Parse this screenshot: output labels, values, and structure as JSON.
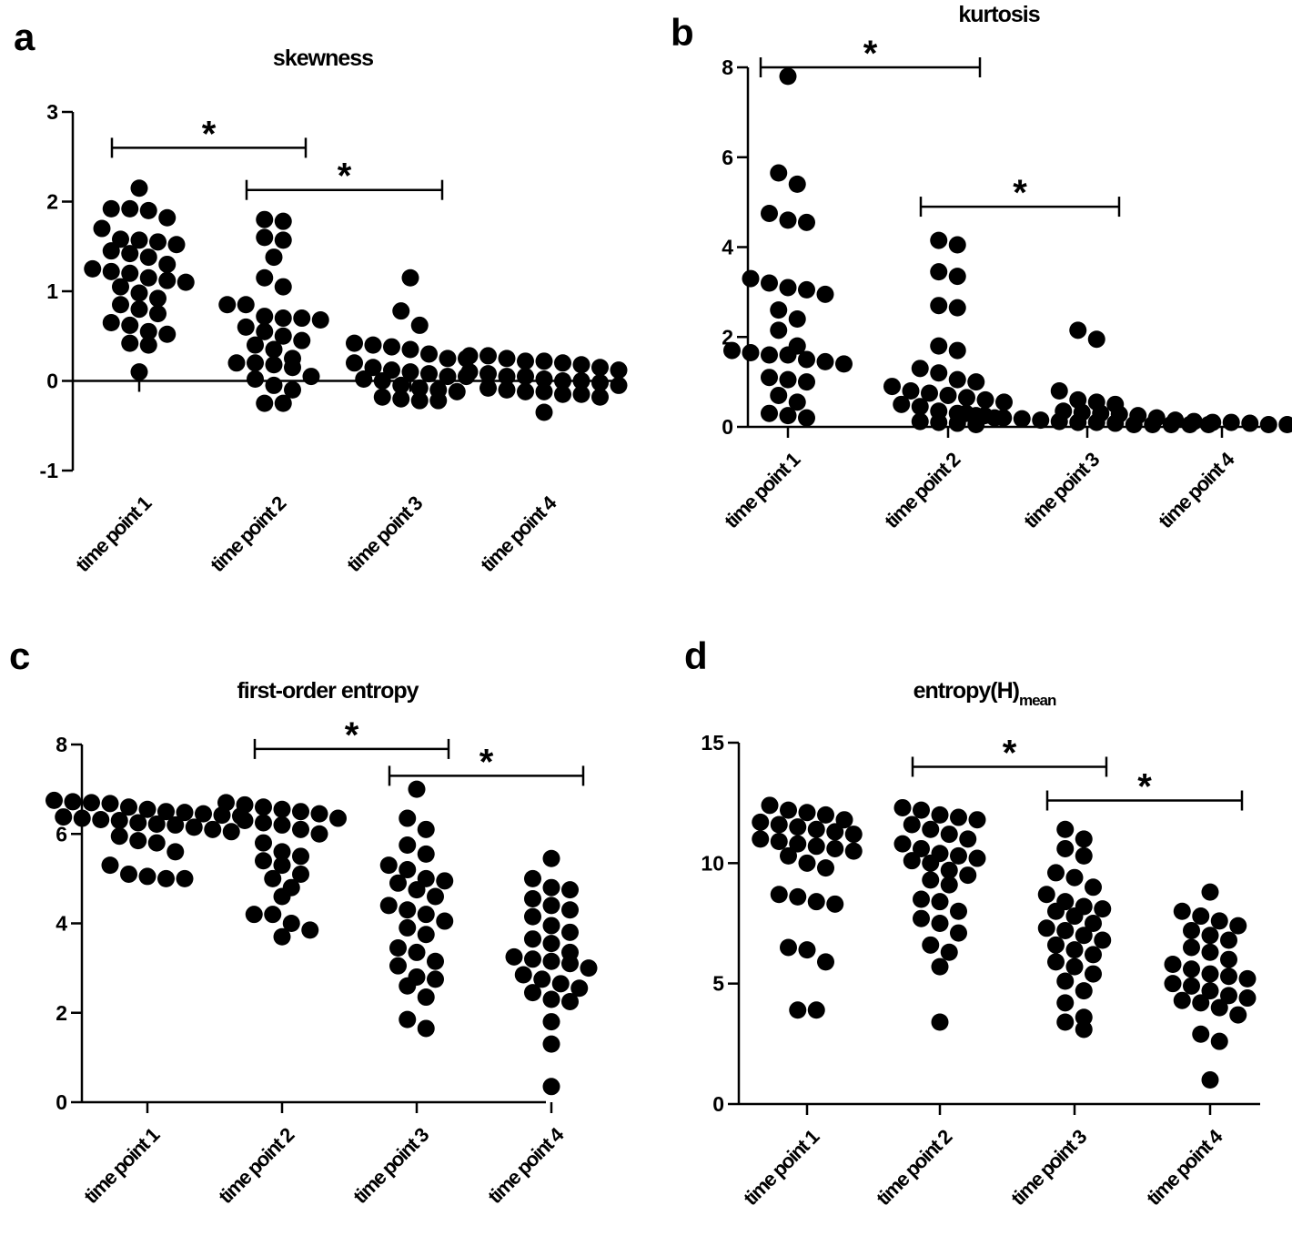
{
  "chart_data": [
    {
      "panel": "a",
      "type": "scatter",
      "title": "skewness",
      "title_sub": "",
      "categories": [
        "time point 1",
        "time point 2",
        "time point 3",
        "time point 4"
      ],
      "ylim": [
        -1,
        3
      ],
      "yticks": [
        -1,
        0,
        1,
        2,
        3
      ],
      "series": [
        {
          "name": "time point 1",
          "values": [
            2.15,
            1.92,
            1.92,
            1.9,
            1.82,
            1.7,
            1.58,
            1.57,
            1.55,
            1.52,
            1.45,
            1.42,
            1.38,
            1.3,
            1.25,
            1.22,
            1.2,
            1.15,
            1.12,
            1.1,
            1.05,
            0.98,
            0.92,
            0.85,
            0.8,
            0.75,
            0.65,
            0.62,
            0.55,
            0.52,
            0.42,
            0.4,
            0.1
          ]
        },
        {
          "name": "time point 2",
          "values": [
            1.8,
            1.78,
            1.6,
            1.57,
            1.38,
            1.15,
            1.05,
            0.85,
            0.85,
            0.72,
            0.7,
            0.7,
            0.68,
            0.6,
            0.55,
            0.5,
            0.45,
            0.4,
            0.35,
            0.25,
            0.2,
            0.2,
            0.18,
            0.15,
            0.05,
            0.02,
            -0.05,
            -0.1,
            -0.25,
            -0.25
          ]
        },
        {
          "name": "time point 3",
          "values": [
            1.15,
            0.78,
            0.62,
            0.42,
            0.4,
            0.38,
            0.35,
            0.3,
            0.25,
            0.25,
            0.2,
            0.15,
            0.12,
            0.1,
            0.08,
            0.05,
            0.05,
            0.02,
            0.0,
            -0.05,
            -0.08,
            -0.1,
            -0.12,
            -0.18,
            -0.2,
            -0.22,
            -0.22
          ]
        },
        {
          "name": "time point 4",
          "values": [
            0.28,
            0.28,
            0.25,
            0.22,
            0.22,
            0.2,
            0.18,
            0.15,
            0.12,
            0.1,
            0.08,
            0.05,
            0.05,
            0.02,
            0.0,
            0.0,
            -0.02,
            -0.05,
            -0.08,
            -0.1,
            -0.12,
            -0.12,
            -0.15,
            -0.15,
            -0.18,
            -0.35
          ]
        }
      ],
      "significance": [
        {
          "from": "time point 1",
          "to": "time point 2",
          "label": "*",
          "y": 2.6
        },
        {
          "from": "time point 2",
          "to": "time point 3",
          "label": "*",
          "y": 2.13
        }
      ]
    },
    {
      "panel": "b",
      "type": "scatter",
      "title": "kurtosis",
      "title_sub": "",
      "categories": [
        "time point 1",
        "time point 2",
        "time point 3",
        "time point 4"
      ],
      "ylim": [
        0,
        8
      ],
      "yticks": [
        0,
        2,
        4,
        6,
        8
      ],
      "series": [
        {
          "name": "time point 1",
          "values": [
            7.8,
            5.65,
            5.4,
            4.75,
            4.6,
            4.55,
            3.3,
            3.2,
            3.1,
            3.05,
            2.95,
            2.6,
            2.4,
            2.15,
            1.8,
            1.7,
            1.65,
            1.6,
            1.6,
            1.5,
            1.45,
            1.4,
            1.1,
            1.05,
            1.0,
            0.7,
            0.55,
            0.3,
            0.25,
            0.2
          ]
        },
        {
          "name": "time point 2",
          "values": [
            4.15,
            4.05,
            3.45,
            3.35,
            2.7,
            2.65,
            1.8,
            1.7,
            1.3,
            1.2,
            1.05,
            1.0,
            0.9,
            0.8,
            0.75,
            0.7,
            0.65,
            0.6,
            0.55,
            0.5,
            0.45,
            0.35,
            0.3,
            0.25,
            0.2,
            0.12,
            0.1,
            0.08,
            0.05
          ]
        },
        {
          "name": "time point 3",
          "values": [
            2.15,
            1.95,
            0.8,
            0.6,
            0.55,
            0.5,
            0.3,
            0.25,
            0.2,
            0.18,
            0.15,
            0.12,
            0.1,
            0.1,
            0.08,
            0.05,
            0.05,
            0.05,
            0.05,
            0.05
          ]
        },
        {
          "name": "time point 4",
          "values": [
            0.35,
            0.32,
            0.3,
            0.28,
            0.25,
            0.2,
            0.15,
            0.12,
            0.1,
            0.1,
            0.08,
            0.05,
            0.05,
            0.05,
            0.05,
            0.05,
            0.05,
            0.05
          ]
        }
      ],
      "significance": [
        {
          "from": "time point 1",
          "to": "time point 2",
          "label": "*",
          "y": 8.0
        },
        {
          "from": "time point 2",
          "to": "time point 3",
          "label": "*",
          "y": 4.9
        }
      ]
    },
    {
      "panel": "c",
      "type": "scatter",
      "title": "first-order entropy",
      "title_sub": "",
      "categories": [
        "time point 1",
        "time point 2",
        "time point 3",
        "time point 4"
      ],
      "ylim": [
        0,
        8
      ],
      "yticks": [
        0,
        2,
        4,
        6,
        8
      ],
      "series": [
        {
          "name": "time point 1",
          "values": [
            6.75,
            6.72,
            6.7,
            6.68,
            6.6,
            6.55,
            6.5,
            6.48,
            6.45,
            6.42,
            6.4,
            6.38,
            6.35,
            6.32,
            6.3,
            6.25,
            6.22,
            6.2,
            6.15,
            6.1,
            6.05,
            5.95,
            5.85,
            5.8,
            5.6,
            5.3,
            5.1,
            5.05,
            5.0,
            5.0
          ]
        },
        {
          "name": "time point 2",
          "values": [
            6.7,
            6.65,
            6.6,
            6.55,
            6.5,
            6.45,
            6.35,
            6.3,
            6.25,
            6.2,
            6.1,
            6.0,
            5.8,
            5.6,
            5.5,
            5.4,
            5.3,
            5.1,
            5.0,
            4.8,
            4.6,
            4.2,
            4.2,
            4.0,
            3.85,
            3.7
          ]
        },
        {
          "name": "time point 3",
          "values": [
            7.0,
            6.35,
            6.1,
            5.75,
            5.55,
            5.3,
            5.2,
            5.0,
            4.95,
            4.9,
            4.75,
            4.6,
            4.4,
            4.3,
            4.2,
            4.05,
            3.9,
            3.75,
            3.45,
            3.35,
            3.15,
            3.05,
            2.8,
            2.75,
            2.6,
            2.35,
            1.85,
            1.65
          ]
        },
        {
          "name": "time point 4",
          "values": [
            5.45,
            5.0,
            4.8,
            4.75,
            4.55,
            4.4,
            4.3,
            4.15,
            3.95,
            3.8,
            3.65,
            3.55,
            3.35,
            3.25,
            3.2,
            3.15,
            3.1,
            3.0,
            2.85,
            2.75,
            2.65,
            2.55,
            2.45,
            2.3,
            2.25,
            1.8,
            1.3,
            0.35
          ]
        }
      ],
      "significance": [
        {
          "from": "time point 2",
          "to": "time point 3",
          "label": "*",
          "y": 7.9
        },
        {
          "from": "time point 3",
          "to": "time point 4",
          "label": "*",
          "y": 7.3
        }
      ]
    },
    {
      "panel": "d",
      "type": "scatter",
      "title": "entropy(H)",
      "title_sub": "mean",
      "categories": [
        "time point 1",
        "time point 2",
        "time point 3",
        "time point 4"
      ],
      "ylim": [
        0,
        15
      ],
      "yticks": [
        0,
        5,
        10,
        15
      ],
      "series": [
        {
          "name": "time point 1",
          "values": [
            12.4,
            12.2,
            12.1,
            12.0,
            11.8,
            11.7,
            11.6,
            11.5,
            11.4,
            11.3,
            11.2,
            11.0,
            10.9,
            10.8,
            10.7,
            10.6,
            10.5,
            10.3,
            10.0,
            9.8,
            8.7,
            8.6,
            8.4,
            8.3,
            6.5,
            6.4,
            5.9,
            3.9,
            3.9
          ]
        },
        {
          "name": "time point 2",
          "values": [
            12.3,
            12.2,
            12.0,
            11.9,
            11.8,
            11.6,
            11.4,
            11.2,
            11.0,
            10.8,
            10.6,
            10.4,
            10.3,
            10.2,
            10.1,
            10.0,
            9.7,
            9.5,
            9.3,
            9.1,
            8.5,
            8.4,
            8.0,
            7.7,
            7.5,
            7.1,
            6.6,
            6.3,
            5.7,
            3.4
          ]
        },
        {
          "name": "time point 3",
          "values": [
            11.4,
            11.0,
            10.6,
            10.3,
            9.6,
            9.4,
            9.0,
            8.7,
            8.4,
            8.2,
            8.1,
            8.0,
            7.8,
            7.5,
            7.3,
            7.2,
            7.0,
            6.8,
            6.6,
            6.4,
            6.2,
            5.9,
            5.7,
            5.4,
            5.1,
            4.7,
            4.2,
            3.6,
            3.4,
            3.1
          ]
        },
        {
          "name": "time point 4",
          "values": [
            8.8,
            8.0,
            7.8,
            7.6,
            7.4,
            7.2,
            7.0,
            6.8,
            6.5,
            6.3,
            6.0,
            5.8,
            5.6,
            5.4,
            5.3,
            5.2,
            5.0,
            4.9,
            4.7,
            4.5,
            4.4,
            4.3,
            4.2,
            4.0,
            3.7,
            2.9,
            2.6,
            1.0
          ]
        }
      ],
      "significance": [
        {
          "from": "time point 2",
          "to": "time point 3",
          "label": "*",
          "y": 14.0
        },
        {
          "from": "time point 3",
          "to": "time point 4",
          "label": "*",
          "y": 12.6
        }
      ]
    }
  ]
}
